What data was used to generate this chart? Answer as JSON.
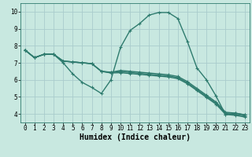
{
  "title": "",
  "xlabel": "Humidex (Indice chaleur)",
  "ylabel": "",
  "bg_color": "#c8e8e0",
  "line_color": "#2e7b6e",
  "grid_color": "#aacccc",
  "x_ticks": [
    0,
    1,
    2,
    3,
    4,
    5,
    6,
    7,
    8,
    9,
    10,
    11,
    12,
    13,
    14,
    15,
    16,
    17,
    18,
    19,
    20,
    21,
    22,
    23
  ],
  "y_ticks": [
    4,
    5,
    6,
    7,
    8,
    9,
    10
  ],
  "xlim": [
    -0.5,
    23.5
  ],
  "ylim": [
    3.5,
    10.5
  ],
  "lines": [
    {
      "x": [
        0,
        1,
        2,
        3,
        4,
        5,
        6,
        7,
        8,
        9,
        10,
        11,
        12,
        13,
        14,
        15,
        16,
        17,
        18,
        19,
        20,
        21,
        22,
        23
      ],
      "y": [
        7.75,
        7.3,
        7.5,
        7.5,
        7.0,
        6.35,
        5.85,
        5.55,
        5.2,
        6.0,
        7.9,
        8.9,
        9.3,
        9.8,
        9.95,
        9.95,
        9.6,
        8.25,
        6.7,
        6.0,
        5.05,
        3.95,
        4.05,
        3.95
      ]
    },
    {
      "x": [
        0,
        1,
        2,
        3,
        4,
        5,
        6,
        7,
        8,
        9,
        10,
        11,
        12,
        13,
        14,
        15,
        16,
        17,
        18,
        19,
        20,
        21,
        22,
        23
      ],
      "y": [
        7.75,
        7.3,
        7.5,
        7.5,
        7.1,
        7.05,
        7.0,
        6.95,
        6.5,
        6.45,
        6.55,
        6.5,
        6.45,
        6.4,
        6.35,
        6.3,
        6.2,
        5.9,
        5.5,
        5.1,
        4.7,
        4.1,
        4.05,
        3.95
      ]
    },
    {
      "x": [
        0,
        1,
        2,
        3,
        4,
        5,
        6,
        7,
        8,
        9,
        10,
        11,
        12,
        13,
        14,
        15,
        16,
        17,
        18,
        19,
        20,
        21,
        22,
        23
      ],
      "y": [
        7.75,
        7.3,
        7.5,
        7.5,
        7.1,
        7.05,
        7.0,
        6.95,
        6.5,
        6.43,
        6.48,
        6.43,
        6.38,
        6.33,
        6.28,
        6.23,
        6.13,
        5.83,
        5.43,
        5.03,
        4.63,
        4.03,
        3.98,
        3.88
      ]
    },
    {
      "x": [
        0,
        1,
        2,
        3,
        4,
        5,
        6,
        7,
        8,
        9,
        10,
        11,
        12,
        13,
        14,
        15,
        16,
        17,
        18,
        19,
        20,
        21,
        22,
        23
      ],
      "y": [
        7.75,
        7.3,
        7.5,
        7.5,
        7.1,
        7.05,
        7.0,
        6.95,
        6.5,
        6.4,
        6.42,
        6.37,
        6.32,
        6.27,
        6.22,
        6.17,
        6.07,
        5.77,
        5.37,
        4.97,
        4.57,
        3.97,
        3.92,
        3.82
      ]
    }
  ],
  "marker": "+",
  "markersize": 3.5,
  "linewidth": 1.0,
  "tick_fontsize": 5.5,
  "label_fontsize": 7.0
}
